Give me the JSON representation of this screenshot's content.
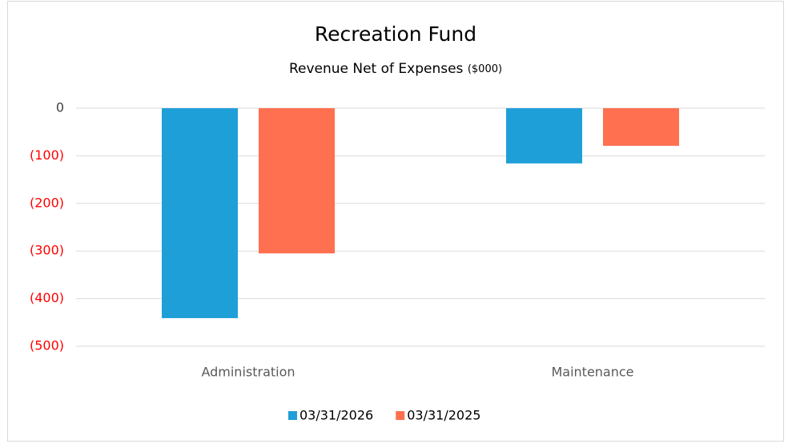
{
  "chart_data": {
    "type": "bar",
    "title": "Recreation Fund",
    "subtitle": "Revenue Net of Expenses",
    "subtitle_unit": "($000)",
    "categories": [
      "Administration",
      "Maintenance"
    ],
    "series": [
      {
        "name": "03/31/2026",
        "color": "#1f9fd8",
        "values": [
          -441,
          -116
        ]
      },
      {
        "name": "03/31/2025",
        "color": "#ff7050",
        "values": [
          -305,
          -79
        ]
      }
    ],
    "ylim": [
      -500,
      0
    ],
    "yticks": [
      {
        "value": -500,
        "label": "(500)"
      },
      {
        "value": -400,
        "label": "(400)"
      },
      {
        "value": -300,
        "label": "(300)"
      },
      {
        "value": -200,
        "label": "(200)"
      },
      {
        "value": -100,
        "label": "(100)"
      },
      0
    ],
    "negative_tick_color": "#ff0000",
    "grid": true,
    "legend": "bottom"
  }
}
